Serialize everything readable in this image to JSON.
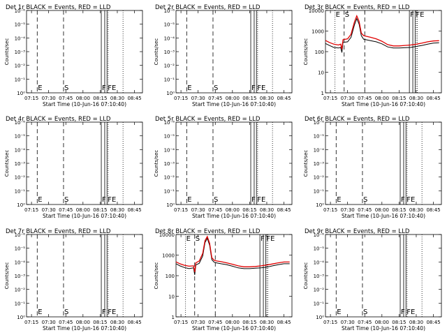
{
  "panels": [
    {
      "title": "Det 1r BLACK = Events, RED = LLD",
      "ylabel": "Counts/sec",
      "xlabel": "Start Time (10-Jun-16 07:10:40)",
      "xticks": [
        "07:15",
        "07:30",
        "07:45",
        "08:00",
        "08:15",
        "08:30",
        "08:45"
      ],
      "yticks": [
        "10⁰",
        "10⁻¹",
        "10⁻²",
        "10⁻³",
        "10⁻⁴",
        "10⁻⁵",
        "10⁻⁶"
      ],
      "markers": [
        "E",
        "S",
        "F",
        "FE"
      ],
      "has_data": false
    },
    {
      "title": "Det 2r BLACK = Events, RED = LLD",
      "ylabel": "Counts/sec",
      "xlabel": "Start Time (10-Jun-16 07:10:40)",
      "xticks": [
        "07:15",
        "07:30",
        "07:45",
        "08:00",
        "08:15",
        "08:30",
        "08:45"
      ],
      "yticks": [
        "10⁰",
        "10⁻¹",
        "10⁻²",
        "10⁻³",
        "10⁻⁴",
        "10⁻⁵",
        "10⁻⁶"
      ],
      "markers": [
        "E",
        "S",
        "F",
        "FE"
      ],
      "has_data": false
    },
    {
      "title": "Det 3r BLACK = Events, RED = LLD",
      "ylabel": "Counts/sec",
      "xlabel": "Start Time (10-Jun-16 07:10:40)",
      "xticks": [
        "07:15",
        "07:30",
        "07:45",
        "08:00",
        "08:15",
        "08:30",
        "08:45"
      ],
      "yticks": [
        "1",
        "10",
        "100",
        "1000",
        "10000"
      ],
      "markers": [
        "E",
        "S",
        "F",
        "FE"
      ],
      "has_data": true
    },
    {
      "title": "Det 4r BLACK = Events, RED = LLD",
      "ylabel": "Counts/sec",
      "xlabel": "Start Time (10-Jun-16 07:10:40)",
      "xticks": [
        "07:15",
        "07:30",
        "07:45",
        "08:00",
        "08:15",
        "08:30",
        "08:45"
      ],
      "yticks": [
        "10⁰",
        "10⁻¹",
        "10⁻²",
        "10⁻³",
        "10⁻⁴",
        "10⁻⁵",
        "10⁻⁶"
      ],
      "markers": [
        "E",
        "S",
        "F",
        "FE"
      ],
      "has_data": false
    },
    {
      "title": "Det 5r BLACK = Events, RED = LLD",
      "ylabel": "Counts/sec",
      "xlabel": "Start Time (10-Jun-16 07:10:40)",
      "xticks": [
        "07:15",
        "07:30",
        "07:45",
        "08:00",
        "08:15",
        "08:30",
        "08:45"
      ],
      "yticks": [
        "10⁰",
        "10⁻¹",
        "10⁻²",
        "10⁻³",
        "10⁻⁴",
        "10⁻⁵",
        "10⁻⁶"
      ],
      "markers": [
        "E",
        "S",
        "F",
        "FE"
      ],
      "has_data": false
    },
    {
      "title": "Det 6r BLACK = Events, RED = LLD",
      "ylabel": "Counts/sec",
      "xlabel": "Start Time (10-Jun-16 07:10:40)",
      "xticks": [
        "07:15",
        "07:30",
        "07:45",
        "08:00",
        "08:15",
        "08:30",
        "08:45"
      ],
      "yticks": [
        "10⁰",
        "10⁻¹",
        "10⁻²",
        "10⁻³",
        "10⁻⁴",
        "10⁻⁵",
        "10⁻⁶"
      ],
      "markers": [
        "E",
        "S",
        "F",
        "FE"
      ],
      "has_data": false
    },
    {
      "title": "Det 7r BLACK = Events, RED = LLD",
      "ylabel": "Counts/sec",
      "xlabel": "Start Time (10-Jun-16 07:10:40)",
      "xticks": [
        "07:15",
        "07:30",
        "07:45",
        "08:00",
        "08:15",
        "08:30",
        "08:45"
      ],
      "yticks": [
        "10⁰",
        "10⁻¹",
        "10⁻²",
        "10⁻³",
        "10⁻⁴",
        "10⁻⁵",
        "10⁻⁶"
      ],
      "markers": [
        "E",
        "S",
        "F",
        "FE"
      ],
      "has_data": false
    },
    {
      "title": "Det 8r BLACK = Events, RED = LLD",
      "ylabel": "Counts/sec",
      "xlabel": "Start Time (10-Jun-16 07:10:40)",
      "xticks": [
        "07:15",
        "07:30",
        "07:45",
        "08:00",
        "08:15",
        "08:30",
        "08:45"
      ],
      "yticks": [
        "1",
        "10",
        "100",
        "1000",
        "10000"
      ],
      "markers": [
        "E",
        "S",
        "F",
        "FE"
      ],
      "has_data": true
    },
    {
      "title": "Det 9r BLACK = Events, RED = LLD",
      "ylabel": "Counts/sec",
      "xlabel": "Start Time (10-Jun-16 07:10:40)",
      "xticks": [
        "07:15",
        "07:30",
        "07:45",
        "08:00",
        "08:15",
        "08:30",
        "08:45"
      ],
      "yticks": [
        "10⁰",
        "10⁻¹",
        "10⁻²",
        "10⁻³",
        "10⁻⁴",
        "10⁻⁵",
        "10⁻⁶"
      ],
      "markers": [
        "E",
        "S",
        "F",
        "FE"
      ],
      "has_data": false
    }
  ],
  "chart_data": [
    {
      "type": "line",
      "title": "Det 3r BLACK = Events, RED = LLD",
      "xlabel": "Start Time (10-Jun-16 07:10:40)",
      "ylabel": "Counts/sec",
      "yscale": "log",
      "ylim": [
        1,
        10000
      ],
      "xlim": [
        "07:10:40",
        "08:52:00"
      ],
      "series": [
        {
          "name": "Events",
          "color": "#000000",
          "x": [
            "07:10:40",
            "07:14",
            "07:18",
            "07:22",
            "07:24",
            "07:25",
            "07:26",
            "07:30",
            "07:33",
            "07:36",
            "07:38",
            "07:40",
            "07:42",
            "07:44",
            "07:46",
            "07:50",
            "07:55",
            "08:00",
            "08:05",
            "08:10",
            "08:15",
            "08:20",
            "08:25",
            "08:30",
            "08:35",
            "08:40",
            "08:45",
            "08:50"
          ],
          "y": [
            250,
            200,
            160,
            150,
            160,
            90,
            280,
            300,
            500,
            2000,
            4000,
            2200,
            600,
            400,
            380,
            340,
            300,
            240,
            170,
            150,
            150,
            155,
            160,
            180,
            200,
            230,
            260,
            270
          ]
        },
        {
          "name": "LLD",
          "color": "#e00000",
          "x": [
            "07:10:40",
            "07:14",
            "07:18",
            "07:22",
            "07:24",
            "07:25",
            "07:26",
            "07:30",
            "07:33",
            "07:36",
            "07:38",
            "07:40",
            "07:42",
            "07:44",
            "07:46",
            "07:50",
            "07:55",
            "08:00",
            "08:05",
            "08:10",
            "08:15",
            "08:20",
            "08:25",
            "08:30",
            "08:35",
            "08:40",
            "08:45",
            "08:50"
          ],
          "y": [
            350,
            280,
            230,
            210,
            230,
            130,
            380,
            420,
            700,
            2800,
            5500,
            3000,
            800,
            600,
            560,
            500,
            420,
            320,
            220,
            190,
            190,
            200,
            210,
            230,
            260,
            300,
            330,
            340
          ]
        }
      ],
      "vlines": [
        {
          "x": "07:19",
          "style": "dotted",
          "label": "E"
        },
        {
          "x": "07:27",
          "style": "dashed",
          "label": "S"
        },
        {
          "x": "07:45",
          "style": "dashed"
        },
        {
          "x": "08:24",
          "style": "solid",
          "label": "F"
        },
        {
          "x": "08:27",
          "style": "solid"
        },
        {
          "x": "08:29",
          "style": "solid",
          "label": "FE"
        },
        {
          "x": "08:30",
          "style": "dotted"
        },
        {
          "x": "08:31",
          "style": "dotted"
        }
      ]
    },
    {
      "type": "line",
      "title": "Det 8r BLACK = Events, RED = LLD",
      "xlabel": "Start Time (10-Jun-16 07:10:40)",
      "ylabel": "Counts/sec",
      "yscale": "log",
      "ylim": [
        1,
        10000
      ],
      "xlim": [
        "07:10:40",
        "08:52:00"
      ],
      "series": [
        {
          "name": "Events",
          "color": "#000000",
          "x": [
            "07:10:40",
            "07:14",
            "07:18",
            "07:22",
            "07:26",
            "07:27",
            "07:28",
            "07:31",
            "07:34",
            "07:36",
            "07:38",
            "07:40",
            "07:42",
            "07:44",
            "07:46",
            "07:50",
            "07:55",
            "08:00",
            "08:05",
            "08:10",
            "08:15",
            "08:20",
            "08:25",
            "08:30",
            "08:35",
            "08:40",
            "08:45",
            "08:50"
          ],
          "y": [
            380,
            300,
            250,
            220,
            240,
            110,
            330,
            400,
            900,
            4000,
            6500,
            3000,
            600,
            450,
            420,
            380,
            340,
            290,
            240,
            220,
            220,
            230,
            240,
            260,
            300,
            340,
            380,
            380
          ]
        },
        {
          "name": "LLD",
          "color": "#e00000",
          "x": [
            "07:10:40",
            "07:14",
            "07:18",
            "07:22",
            "07:26",
            "07:27",
            "07:28",
            "07:31",
            "07:34",
            "07:36",
            "07:38",
            "07:40",
            "07:42",
            "07:44",
            "07:46",
            "07:50",
            "07:55",
            "08:00",
            "08:05",
            "08:10",
            "08:15",
            "08:20",
            "08:25",
            "08:30",
            "08:35",
            "08:40",
            "08:45",
            "08:50"
          ],
          "y": [
            470,
            380,
            320,
            290,
            300,
            150,
            420,
            520,
            1200,
            5000,
            8000,
            3800,
            750,
            560,
            520,
            480,
            420,
            360,
            300,
            270,
            270,
            280,
            300,
            330,
            370,
            420,
            460,
            460
          ]
        }
      ],
      "vlines": [
        {
          "x": "07:19",
          "style": "dotted",
          "label": "E"
        },
        {
          "x": "07:27",
          "style": "dashed",
          "label": "S"
        },
        {
          "x": "07:45",
          "style": "dashed"
        },
        {
          "x": "08:24",
          "style": "solid",
          "label": "F"
        },
        {
          "x": "08:27",
          "style": "solid"
        },
        {
          "x": "08:29",
          "style": "solid",
          "label": "FE"
        },
        {
          "x": "08:30",
          "style": "dotted"
        },
        {
          "x": "08:31",
          "style": "dotted"
        }
      ]
    }
  ],
  "empty_panel_vlines": [
    {
      "x": "07:20",
      "style": "dashed",
      "label": "E"
    },
    {
      "x": "07:43",
      "style": "dashed",
      "label": "S"
    },
    {
      "x": "08:16",
      "style": "solid",
      "label": "F"
    },
    {
      "x": "08:19",
      "style": "solid"
    },
    {
      "x": "08:21",
      "style": "solid",
      "label": "FE"
    },
    {
      "x": "08:22",
      "style": "dotted"
    },
    {
      "x": "08:35",
      "style": "dotted"
    }
  ]
}
